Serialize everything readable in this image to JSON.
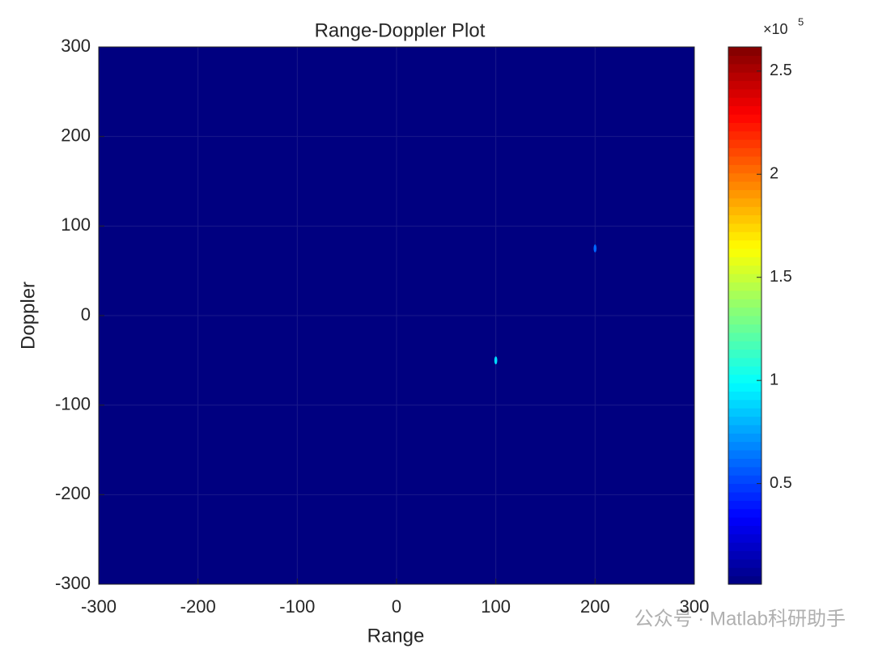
{
  "chart_data": {
    "type": "heatmap",
    "title": "Range-Doppler Plot",
    "x_label": "Range",
    "y_label": "Doppler",
    "xlim": [
      -300,
      300
    ],
    "xticks": [
      -300,
      -200,
      -100,
      0,
      100,
      200,
      300
    ],
    "ylim": [
      -300,
      300
    ],
    "yticks": [
      -300,
      -200,
      -100,
      0,
      100,
      200,
      300
    ],
    "grid": true,
    "colormap": "jet",
    "background_value": 1200,
    "peaks": [
      {
        "x": 100,
        "y": -50,
        "value": 90000
      },
      {
        "x": 200,
        "y": 75,
        "value": 60000
      }
    ],
    "clim": [
      1200,
      261700
    ],
    "colorbar_ticks": [
      {
        "value": 50000,
        "label": "0.5"
      },
      {
        "value": 100000,
        "label": "1"
      },
      {
        "value": 150000,
        "label": "1.5"
      },
      {
        "value": 200000,
        "label": "2"
      },
      {
        "value": 250000,
        "label": "2.5"
      }
    ],
    "colorbar_multiplier": "×10",
    "colorbar_exponent": "5",
    "watermark": "公众号 · Matlab科研助手"
  }
}
